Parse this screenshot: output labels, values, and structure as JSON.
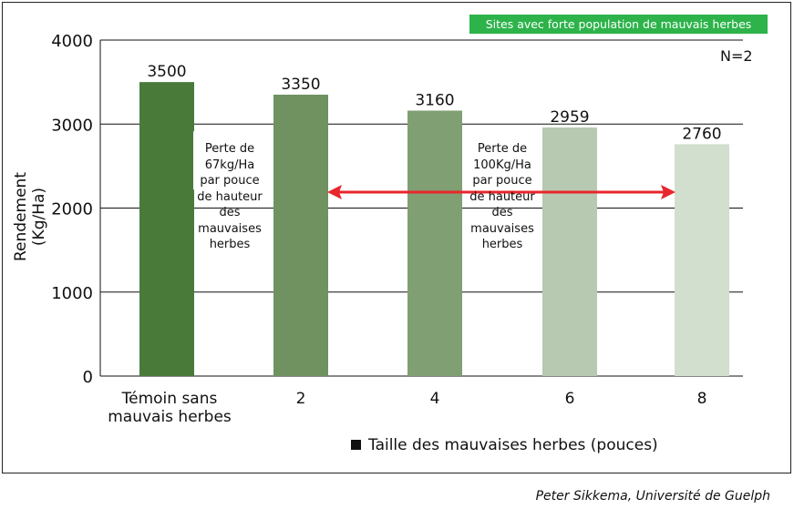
{
  "chart_data": {
    "type": "bar",
    "categories": [
      "Témoin sans mauvais herbes",
      "2",
      "4",
      "6",
      "8"
    ],
    "values": [
      3500,
      3350,
      3160,
      2959,
      2760
    ],
    "colors": [
      "#4a7a3a",
      "#6f9260",
      "#809f72",
      "#b7c9b0",
      "#d2dece"
    ],
    "ylabel": "Rendement (Kg/Ha)",
    "ylim": [
      0,
      4000
    ],
    "yticks": [
      0,
      1000,
      2000,
      3000,
      4000
    ],
    "grid": true,
    "legend": "Taille des mauvaises herbes (pouces)",
    "badge": "Sites avec forte population de mauvais herbes",
    "n_label": "N=2",
    "annotations": [
      "Perte de 67kg/Ha par pouce de hauteur des mauvaises herbes",
      "Perte de 100Kg/Ha par pouce de hauteur des mauvaises herbes"
    ],
    "arrow_color": "#e8262b"
  },
  "credit": "Peter Sikkema, Université de Guelph"
}
